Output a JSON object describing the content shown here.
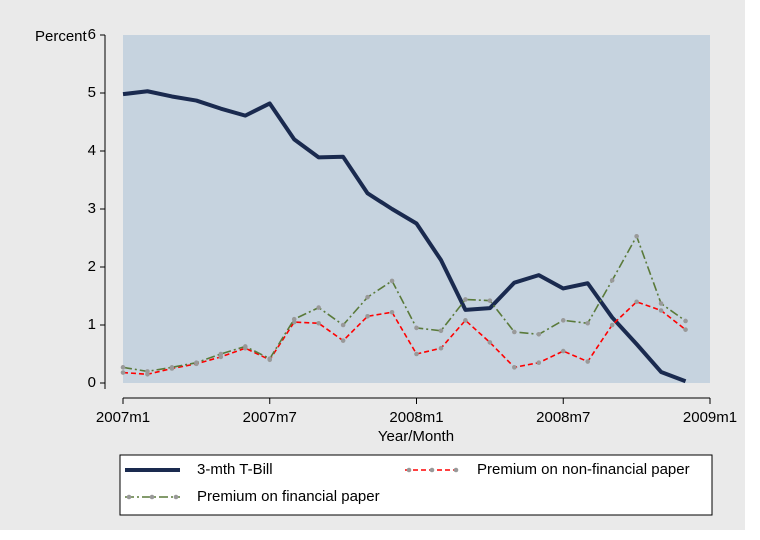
{
  "chart_data": {
    "type": "line",
    "y_label": "Percent",
    "x_label": "Year/Month",
    "x": [
      "2007m1",
      "2007m2",
      "2007m3",
      "2007m4",
      "2007m5",
      "2007m6",
      "2007m7",
      "2007m8",
      "2007m9",
      "2007m10",
      "2007m11",
      "2007m12",
      "2008m1",
      "2008m2",
      "2008m3",
      "2008m4",
      "2008m5",
      "2008m6",
      "2008m7",
      "2008m8",
      "2008m9",
      "2008m10",
      "2008m11",
      "2008m12"
    ],
    "series": [
      {
        "name": "3-mth T-Bill",
        "color": "#1a2a4f",
        "line_style": "solid",
        "markers": false,
        "values": [
          4.98,
          5.03,
          4.94,
          4.87,
          4.73,
          4.61,
          4.82,
          4.2,
          3.89,
          3.9,
          3.27,
          3.0,
          2.75,
          2.12,
          1.26,
          1.29,
          1.73,
          1.86,
          1.63,
          1.72,
          1.13,
          0.67,
          0.19,
          0.03
        ]
      },
      {
        "name": "Premium on non-financial paper",
        "color": "#ff0000",
        "line_style": "dashed",
        "markers": true,
        "values": [
          0.18,
          0.15,
          0.25,
          0.33,
          0.45,
          0.6,
          0.4,
          1.05,
          1.03,
          0.73,
          1.15,
          1.22,
          0.5,
          0.6,
          1.08,
          0.7,
          0.27,
          0.35,
          0.55,
          0.37,
          1.0,
          1.4,
          1.25,
          0.92
        ]
      },
      {
        "name": "Premium on financial paper",
        "color": "#5a7a3a",
        "line_style": "dashdot",
        "markers": true,
        "values": [
          0.27,
          0.2,
          0.27,
          0.35,
          0.5,
          0.63,
          0.42,
          1.1,
          1.3,
          1.0,
          1.48,
          1.76,
          0.95,
          0.9,
          1.44,
          1.42,
          0.88,
          0.84,
          1.08,
          1.03,
          1.77,
          2.53,
          1.37,
          1.07
        ]
      }
    ],
    "marker_color": "#999999",
    "xlim": [
      "2007m1",
      "2009m1"
    ],
    "xticks": [
      "2007m1",
      "2007m7",
      "2008m1",
      "2008m7",
      "2009m1"
    ],
    "ylim": [
      0,
      6
    ],
    "yticks": [
      0,
      1,
      2,
      3,
      4,
      5,
      6
    ],
    "grid": false,
    "legend_position": "bottom"
  }
}
